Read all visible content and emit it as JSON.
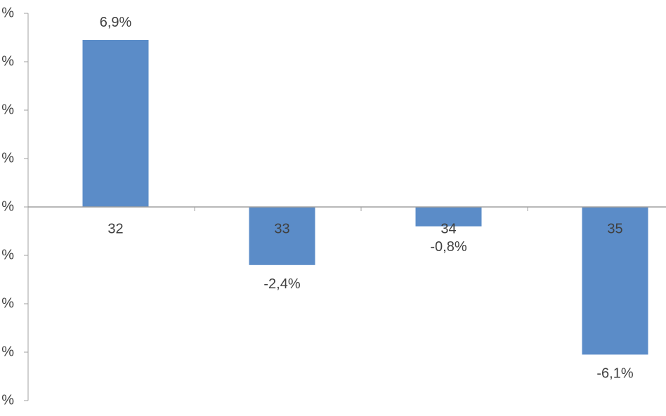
{
  "chart_data": {
    "type": "bar",
    "categories": [
      "32",
      "33",
      "34",
      "35"
    ],
    "values": [
      6.9,
      -2.4,
      -0.8,
      -6.1
    ],
    "value_labels": [
      "6,9%",
      "-2,4%",
      "-0,8%",
      "-6,1%"
    ],
    "color": "#5b8cc8",
    "ylim": [
      -8,
      8
    ],
    "yticks": [
      {
        "value": 8,
        "label": "%"
      },
      {
        "value": 6,
        "label": "%"
      },
      {
        "value": 4,
        "label": "%"
      },
      {
        "value": 2,
        "label": "%"
      },
      {
        "value": 0,
        "label": "%"
      },
      {
        "value": -2,
        "label": "%"
      },
      {
        "value": -4,
        "label": "%"
      },
      {
        "value": -6,
        "label": "%"
      },
      {
        "value": -8,
        "label": "%"
      }
    ]
  }
}
